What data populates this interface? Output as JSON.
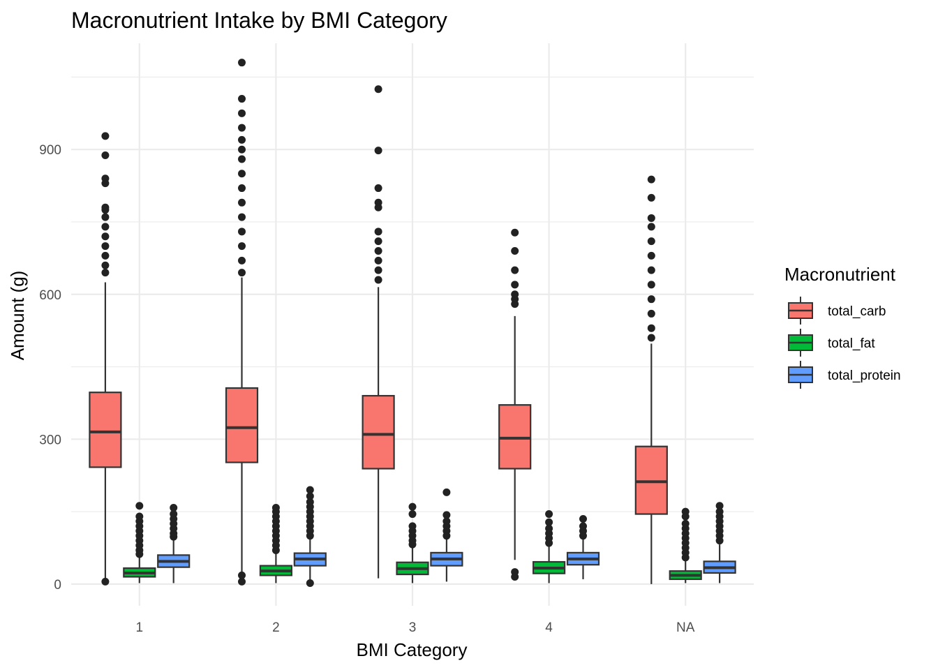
{
  "chart_data": {
    "type": "boxplot",
    "title": "Macronutrient Intake by BMI Category",
    "xlabel": "BMI Category",
    "ylabel": "Amount (g)",
    "categories": [
      "1",
      "2",
      "3",
      "4",
      "NA"
    ],
    "yticks": [
      0,
      300,
      600,
      900
    ],
    "ylim": [
      -45,
      1120
    ],
    "grid": true,
    "legend": {
      "title": "Macronutrient",
      "position": "right",
      "entries": [
        {
          "name": "total_carb",
          "color": "#F8766D"
        },
        {
          "name": "total_fat",
          "color": "#00BA38"
        },
        {
          "name": "total_protein",
          "color": "#619CFF"
        }
      ]
    },
    "series": [
      {
        "name": "total_carb",
        "color": "#F8766D",
        "boxes": [
          {
            "whisker_low": 5,
            "q1": 242,
            "median": 315,
            "q3": 397,
            "whisker_high": 625,
            "outliers": [
              5,
              645,
              660,
              680,
              700,
              720,
              740,
              760,
              775,
              780,
              830,
              840,
              888,
              928
            ]
          },
          {
            "whisker_low": 5,
            "q1": 252,
            "median": 324,
            "q3": 406,
            "whisker_high": 635,
            "outliers": [
              5,
              18,
              645,
              670,
              700,
              730,
              760,
              790,
              820,
              850,
              880,
              900,
              920,
              945,
              975,
              1005,
              1080
            ]
          },
          {
            "whisker_low": 12,
            "q1": 239,
            "median": 310,
            "q3": 390,
            "whisker_high": 615,
            "outliers": [
              630,
              650,
              670,
              690,
              710,
              730,
              780,
              790,
              820,
              898,
              1025
            ]
          },
          {
            "whisker_low": 50,
            "q1": 239,
            "median": 302,
            "q3": 371,
            "whisker_high": 555,
            "outliers": [
              15,
              25,
              580,
              590,
              600,
              620,
              650,
              690,
              728
            ]
          },
          {
            "whisker_low": 0,
            "q1": 145,
            "median": 212,
            "q3": 285,
            "whisker_high": 498,
            "outliers": [
              510,
              530,
              560,
              590,
              620,
              650,
              680,
              710,
              740,
              758,
              800,
              838
            ]
          }
        ]
      },
      {
        "name": "total_fat",
        "color": "#00BA38",
        "boxes": [
          {
            "whisker_low": 2,
            "q1": 15,
            "median": 23,
            "q3": 33,
            "whisker_high": 58,
            "outliers": [
              62,
              70,
              80,
              90,
              100,
              110,
              120,
              130,
              140,
              162
            ]
          },
          {
            "whisker_low": 2,
            "q1": 18,
            "median": 27,
            "q3": 38,
            "whisker_high": 65,
            "outliers": [
              70,
              80,
              90,
              100,
              110,
              120,
              130,
              140,
              150,
              158
            ]
          },
          {
            "whisker_low": 2,
            "q1": 20,
            "median": 32,
            "q3": 45,
            "whisker_high": 78,
            "outliers": [
              82,
              90,
              100,
              110,
              120,
              145,
              160
            ]
          },
          {
            "whisker_low": 2,
            "q1": 22,
            "median": 33,
            "q3": 46,
            "whisker_high": 80,
            "outliers": [
              85,
              95,
              105,
              115,
              128,
              145
            ]
          },
          {
            "whisker_low": 2,
            "q1": 10,
            "median": 18,
            "q3": 27,
            "whisker_high": 50,
            "outliers": [
              55,
              65,
              75,
              85,
              95,
              105,
              115,
              125,
              140,
              150
            ]
          }
        ]
      },
      {
        "name": "total_protein",
        "color": "#619CFF",
        "boxes": [
          {
            "whisker_low": 2,
            "q1": 35,
            "median": 47,
            "q3": 60,
            "whisker_high": 93,
            "outliers": [
              98,
              105,
              115,
              125,
              135,
              145,
              158
            ]
          },
          {
            "whisker_low": 2,
            "q1": 38,
            "median": 52,
            "q3": 64,
            "whisker_high": 95,
            "outliers": [
              2,
              100,
              110,
              120,
              130,
              140,
              150,
              160,
              170,
              182,
              195
            ]
          },
          {
            "whisker_low": 5,
            "q1": 38,
            "median": 52,
            "q3": 65,
            "whisker_high": 96,
            "outliers": [
              100,
              110,
              120,
              130,
              143,
              190
            ]
          },
          {
            "whisker_low": 10,
            "q1": 40,
            "median": 52,
            "q3": 65,
            "whisker_high": 96,
            "outliers": [
              100,
              110,
              120,
              135
            ]
          },
          {
            "whisker_low": 2,
            "q1": 23,
            "median": 34,
            "q3": 47,
            "whisker_high": 82,
            "outliers": [
              90,
              100,
              110,
              120,
              130,
              140,
              150,
              162
            ]
          }
        ]
      }
    ]
  }
}
